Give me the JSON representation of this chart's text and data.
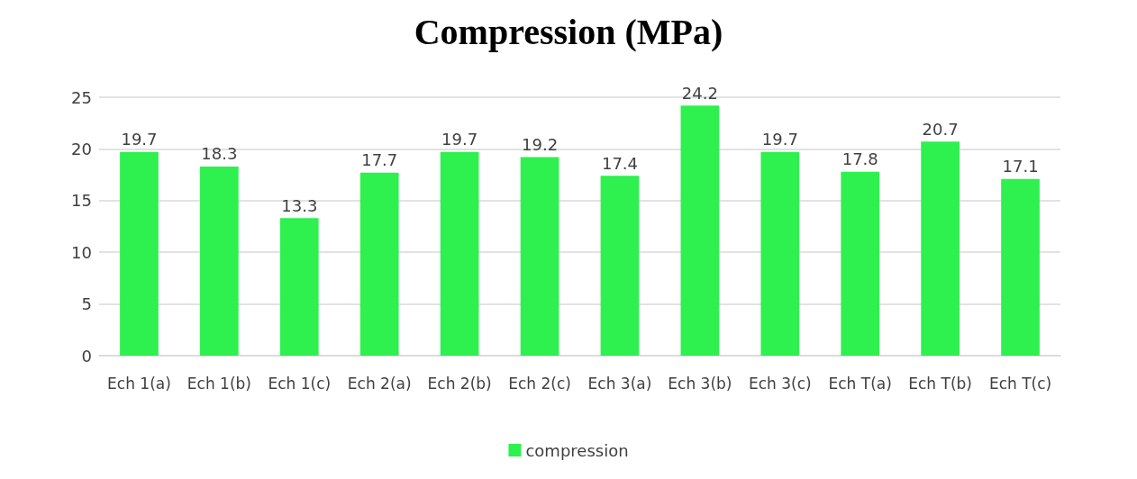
{
  "chart_data": {
    "type": "bar",
    "title": "Compression (MPa)",
    "categories": [
      "Ech 1(a)",
      "Ech 1(b)",
      "Ech 1(c)",
      "Ech 2(a)",
      "Ech 2(b)",
      "Ech 2(c)",
      "Ech 3(a)",
      "Ech 3(b)",
      "Ech 3(c)",
      "Ech T(a)",
      "Ech T(b)",
      "Ech T(c)"
    ],
    "series": [
      {
        "name": "compression",
        "color": "#2ef04e",
        "values": [
          19.7,
          18.3,
          13.3,
          17.7,
          19.7,
          19.2,
          17.4,
          24.2,
          19.7,
          17.8,
          20.7,
          17.1
        ]
      }
    ],
    "ylim": [
      0,
      25
    ],
    "yticks": [
      0,
      5,
      10,
      15,
      20,
      25
    ],
    "grid": true,
    "legend": "bottom",
    "data_labels": true
  }
}
